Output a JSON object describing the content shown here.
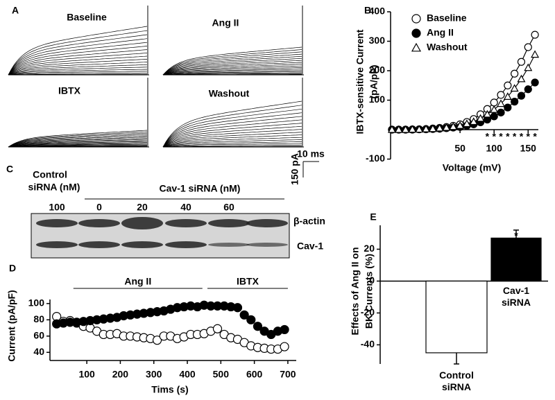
{
  "panel_labels": [
    "A",
    "B",
    "C",
    "D",
    "E"
  ],
  "traces": {
    "labels": [
      "Baseline",
      "Ang II",
      "IBTX",
      "Washout"
    ],
    "scale_x": "10 ms",
    "scale_y": "150 pA"
  },
  "blot": {
    "control_label": [
      "Control",
      "siRNA (nM)"
    ],
    "cav_label": "Cav-1 siRNA (nM)",
    "doses": [
      "100",
      "0",
      "20",
      "40",
      "60"
    ],
    "bands": [
      "β-actin",
      "Cav-1"
    ]
  },
  "chart_data": [
    {
      "type": "line",
      "xlabel": "Voltage (mV)",
      "ylabel": [
        "IBTX-sensitive Current",
        "(pA/pF)"
      ],
      "x": [
        -50,
        -40,
        -30,
        -20,
        -10,
        0,
        10,
        20,
        30,
        40,
        50,
        60,
        70,
        80,
        90,
        100,
        110,
        120,
        130,
        140,
        150,
        160
      ],
      "series": [
        {
          "name": "Baseline",
          "color": "#000000",
          "marker": "circle-open",
          "values": [
            0,
            0,
            0,
            1,
            1,
            2,
            4,
            6,
            9,
            13,
            18,
            26,
            36,
            52,
            70,
            92,
            118,
            150,
            190,
            230,
            280,
            322
          ]
        },
        {
          "name": "Ang II",
          "color": "#000000",
          "marker": "circle-filled",
          "values": [
            0,
            0,
            0,
            0,
            1,
            1,
            2,
            3,
            5,
            7,
            9,
            13,
            18,
            25,
            34,
            45,
            58,
            75,
            95,
            115,
            137,
            160
          ]
        },
        {
          "name": "Washout",
          "color": "#000000",
          "marker": "triangle-open",
          "values": [
            0,
            0,
            0,
            1,
            1,
            2,
            3,
            5,
            7,
            10,
            14,
            20,
            27,
            38,
            52,
            68,
            88,
            112,
            140,
            172,
            210,
            255
          ]
        }
      ],
      "significance": {
        "text": "*",
        "x": [
          90,
          100,
          110,
          120,
          130,
          140,
          150,
          160
        ]
      },
      "xlim": [
        -52,
        165
      ],
      "ylim": [
        -100,
        400
      ],
      "xticks": [
        50,
        100,
        150
      ],
      "yticks": [
        -100,
        100,
        200,
        300,
        400
      ],
      "legend": "top-left"
    },
    {
      "type": "scatter",
      "xlabel": "Tims (s)",
      "ylabel": "Current (pA/pF)",
      "x": [
        10,
        30,
        50,
        70,
        90,
        110,
        130,
        150,
        170,
        190,
        210,
        230,
        250,
        270,
        290,
        310,
        330,
        350,
        370,
        390,
        410,
        430,
        450,
        470,
        490,
        510,
        530,
        550,
        570,
        590,
        610,
        630,
        650,
        670,
        690
      ],
      "series": [
        {
          "color": "#000000",
          "marker": "circle-filled",
          "values": [
            75,
            76,
            77,
            77,
            78,
            79,
            80,
            81,
            82,
            83,
            85,
            86,
            87,
            88,
            89,
            90,
            91,
            93,
            95,
            96,
            97,
            96,
            98,
            97,
            97,
            97,
            96,
            95,
            86,
            80,
            72,
            66,
            62,
            66,
            68
          ]
        },
        {
          "color": "#000000",
          "marker": "circle-open",
          "values": [
            84,
            78,
            79,
            76,
            72,
            70,
            66,
            62,
            62,
            63,
            60,
            60,
            59,
            58,
            57,
            55,
            60,
            60,
            57,
            59,
            62,
            62,
            63,
            66,
            69,
            62,
            58,
            56,
            52,
            48,
            46,
            45,
            44,
            44,
            47
          ]
        }
      ],
      "annotations": [
        {
          "text": "Ang II",
          "start": 60,
          "end": 445
        },
        {
          "text": "IBTX",
          "start": 460,
          "end": 700
        }
      ],
      "xlim": [
        -10,
        725
      ],
      "ylim": [
        30,
        105
      ],
      "xticks": [
        100,
        200,
        300,
        400,
        500,
        600,
        700
      ],
      "yticks": [
        40,
        60,
        80,
        100
      ]
    },
    {
      "type": "bar",
      "ylabel": [
        "Effects of Ang II on",
        "BK Currents (%)"
      ],
      "categories": [
        "Control siRNA",
        "Cav-1 siRNA"
      ],
      "values": [
        -45,
        27
      ],
      "errors": [
        7,
        5
      ],
      "colors": [
        "#ffffff",
        "#000000"
      ],
      "significance": "*",
      "ylim": [
        -52,
        35
      ],
      "yticks": [
        -40,
        -20,
        0,
        20
      ]
    }
  ]
}
